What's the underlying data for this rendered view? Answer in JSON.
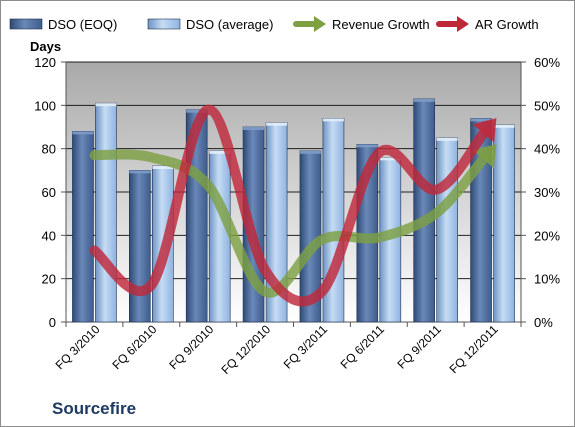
{
  "company_label": "Sourcefire",
  "chart_data": {
    "type": "bar",
    "categories": [
      "FQ 3/2010",
      "FQ 6/2010",
      "FQ 9/2010",
      "FQ 12/2010",
      "FQ 3/2011",
      "FQ 6/2011",
      "FQ 9/2011",
      "FQ 12/2011"
    ],
    "ylabel": "Days",
    "ylim": [
      0,
      120
    ],
    "y_ticks": [
      "0",
      "20",
      "40",
      "60",
      "80",
      "100",
      "120"
    ],
    "y2lim": [
      0,
      0.6
    ],
    "y2_ticks": [
      "0%",
      "10%",
      "20%",
      "30%",
      "40%",
      "50%",
      "60%"
    ],
    "legend_position": "top",
    "grid": true,
    "series": [
      {
        "name": "DSO (EOQ)",
        "kind": "bar",
        "axis": "left",
        "color": "#3d5c8c",
        "values": [
          88,
          70,
          98,
          90,
          79,
          82,
          103,
          94
        ]
      },
      {
        "name": "DSO (average)",
        "kind": "bar",
        "axis": "left",
        "color": "#8fb3e0",
        "values": [
          101,
          72,
          79,
          92,
          94,
          76,
          85,
          91
        ]
      },
      {
        "name": "Revenue Growth",
        "kind": "line",
        "axis": "right",
        "color": "#7da043",
        "values": [
          0.385,
          0.38,
          0.315,
          0.07,
          0.19,
          0.195,
          0.25,
          0.4
        ]
      },
      {
        "name": "AR Growth",
        "kind": "line",
        "axis": "right",
        "color": "#c0283a",
        "values": [
          0.165,
          0.085,
          0.49,
          0.12,
          0.07,
          0.39,
          0.305,
          0.46
        ]
      }
    ]
  }
}
